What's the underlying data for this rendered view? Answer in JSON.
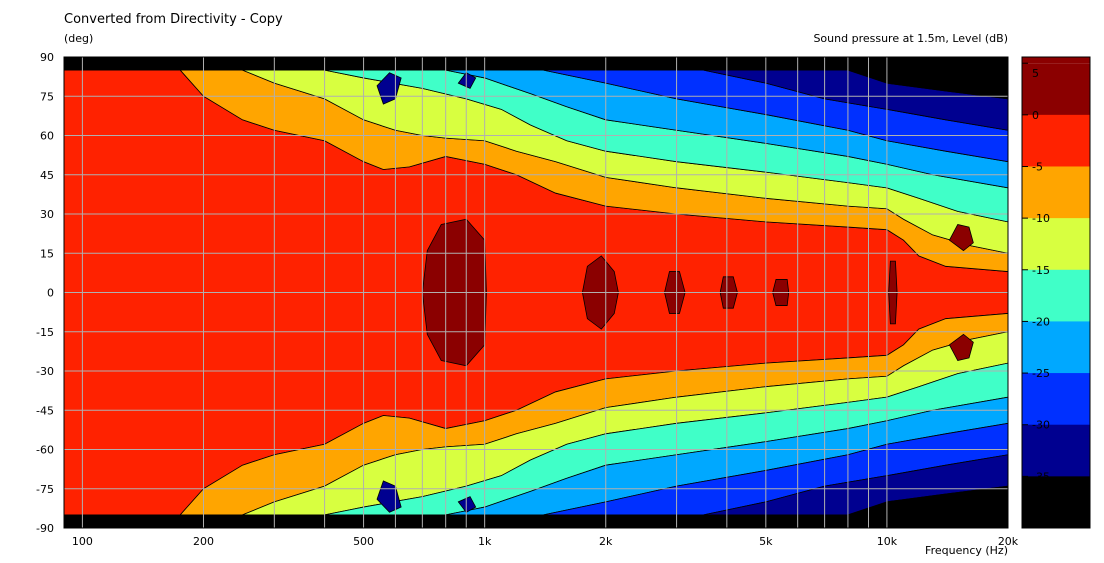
{
  "title": "Converted from Directivity - Copy",
  "y_unit_label": "(deg)",
  "right_title": "Sound pressure at 1.5m, Level  (dB)",
  "x_unit_label": "Frequency  (Hz)",
  "chart_data": {
    "type": "heatmap",
    "title": "Converted from Directivity - Copy",
    "xlabel": "Frequency  (Hz)",
    "ylabel": "(deg)",
    "colorbar_label": "Sound pressure at 1.5m, Level  (dB)",
    "x_scale": "log",
    "xlim": [
      90,
      20000
    ],
    "ylim": [
      -90,
      90
    ],
    "x_ticks": [
      {
        "value": 100,
        "label": "100"
      },
      {
        "value": 200,
        "label": "200"
      },
      {
        "value": 500,
        "label": "500"
      },
      {
        "value": 1000,
        "label": "1k"
      },
      {
        "value": 2000,
        "label": "2k"
      },
      {
        "value": 5000,
        "label": "5k"
      },
      {
        "value": 10000,
        "label": "10k"
      },
      {
        "value": 20000,
        "label": "20k"
      }
    ],
    "y_ticks": [
      90,
      75,
      60,
      45,
      30,
      15,
      0,
      -15,
      -30,
      -45,
      -60,
      -75,
      -90
    ],
    "levels": [
      {
        "min": 0,
        "max": 5,
        "color": "#8B0000"
      },
      {
        "min": -5,
        "max": 0,
        "color": "#FF2200"
      },
      {
        "min": -10,
        "max": -5,
        "color": "#FFA500"
      },
      {
        "min": -15,
        "max": -10,
        "color": "#D8FF40"
      },
      {
        "min": -20,
        "max": -15,
        "color": "#40FFC8"
      },
      {
        "min": -25,
        "max": -20,
        "color": "#00A8FF"
      },
      {
        "min": -30,
        "max": -25,
        "color": "#0030FF"
      },
      {
        "min": -35,
        "max": -30,
        "color": "#000090"
      },
      {
        "min": -40,
        "max": -35,
        "color": "#000000"
      }
    ],
    "colorbar_ticks": [
      "5",
      "0",
      "-5",
      "-10",
      "-15",
      "-20",
      "-25",
      "-30",
      "-35"
    ],
    "contours": [
      {
        "level": "0..5",
        "points": [
          [
            90,
            15
          ],
          [
            100,
            19
          ],
          [
            120,
            28
          ],
          [
            140,
            40
          ],
          [
            160,
            60
          ],
          [
            170,
            85
          ],
          [
            100,
            85
          ],
          [
            90,
            85
          ]
        ]
      },
      {
        "level": "-5..0",
        "points": [
          [
            90,
            85
          ],
          [
            175,
            85
          ],
          [
            200,
            75
          ],
          [
            250,
            66
          ],
          [
            300,
            62
          ],
          [
            400,
            58
          ],
          [
            500,
            50
          ],
          [
            560,
            47
          ],
          [
            650,
            48
          ],
          [
            800,
            52
          ],
          [
            1000,
            49
          ],
          [
            1200,
            45
          ],
          [
            1500,
            38
          ],
          [
            2000,
            33
          ],
          [
            3000,
            30
          ],
          [
            5000,
            27
          ],
          [
            8000,
            25
          ],
          [
            10000,
            24
          ],
          [
            11000,
            20
          ],
          [
            12000,
            14
          ],
          [
            14000,
            10
          ],
          [
            20000,
            8
          ],
          [
            20000,
            0
          ],
          [
            90,
            0
          ]
        ]
      },
      {
        "level": "-10..-5",
        "points": [
          [
            170,
            85
          ],
          [
            250,
            85
          ],
          [
            300,
            80
          ],
          [
            400,
            74
          ],
          [
            500,
            66
          ],
          [
            600,
            62
          ],
          [
            700,
            60
          ],
          [
            800,
            59
          ],
          [
            1000,
            58
          ],
          [
            1200,
            54
          ],
          [
            1500,
            50
          ],
          [
            2000,
            44
          ],
          [
            3000,
            40
          ],
          [
            5000,
            36
          ],
          [
            8000,
            33
          ],
          [
            10000,
            32
          ],
          [
            11000,
            28
          ],
          [
            13000,
            22
          ],
          [
            16000,
            18
          ],
          [
            20000,
            15
          ],
          [
            20000,
            8
          ],
          [
            14000,
            10
          ],
          [
            12000,
            14
          ],
          [
            11000,
            20
          ],
          [
            10000,
            24
          ],
          [
            8000,
            25
          ],
          [
            5000,
            27
          ],
          [
            3000,
            30
          ],
          [
            2000,
            33
          ],
          [
            1500,
            38
          ],
          [
            1200,
            45
          ],
          [
            1000,
            49
          ],
          [
            800,
            52
          ],
          [
            650,
            48
          ],
          [
            560,
            47
          ],
          [
            500,
            50
          ],
          [
            400,
            58
          ],
          [
            300,
            62
          ],
          [
            250,
            66
          ],
          [
            200,
            75
          ],
          [
            175,
            85
          ]
        ]
      },
      {
        "level": "-15..-10",
        "points": [
          [
            250,
            85
          ],
          [
            400,
            85
          ],
          [
            500,
            82
          ],
          [
            700,
            78
          ],
          [
            900,
            74
          ],
          [
            1100,
            70
          ],
          [
            1300,
            64
          ],
          [
            1600,
            58
          ],
          [
            2000,
            54
          ],
          [
            3000,
            50
          ],
          [
            5000,
            46
          ],
          [
            8000,
            42
          ],
          [
            10000,
            40
          ],
          [
            12000,
            36
          ],
          [
            15000,
            31
          ],
          [
            20000,
            27
          ],
          [
            20000,
            15
          ],
          [
            16000,
            18
          ],
          [
            13000,
            22
          ],
          [
            11000,
            28
          ],
          [
            10000,
            32
          ],
          [
            8000,
            33
          ],
          [
            5000,
            36
          ],
          [
            3000,
            40
          ],
          [
            2000,
            44
          ],
          [
            1500,
            50
          ],
          [
            1200,
            54
          ],
          [
            1000,
            58
          ],
          [
            800,
            59
          ],
          [
            700,
            60
          ],
          [
            600,
            62
          ],
          [
            500,
            66
          ],
          [
            400,
            74
          ],
          [
            300,
            80
          ]
        ]
      },
      {
        "level": "-20..-15",
        "points": [
          [
            400,
            85
          ],
          [
            800,
            85
          ],
          [
            1000,
            82
          ],
          [
            1300,
            76
          ],
          [
            1600,
            71
          ],
          [
            2000,
            66
          ],
          [
            3000,
            62
          ],
          [
            5000,
            57
          ],
          [
            8000,
            52
          ],
          [
            10000,
            49
          ],
          [
            13000,
            45
          ],
          [
            20000,
            40
          ],
          [
            20000,
            27
          ],
          [
            15000,
            31
          ],
          [
            12000,
            36
          ],
          [
            10000,
            40
          ],
          [
            8000,
            42
          ],
          [
            5000,
            46
          ],
          [
            3000,
            50
          ],
          [
            2000,
            54
          ],
          [
            1600,
            58
          ],
          [
            1300,
            64
          ],
          [
            1100,
            70
          ],
          [
            900,
            74
          ],
          [
            700,
            78
          ],
          [
            500,
            82
          ]
        ]
      },
      {
        "level": "-25..-20",
        "points": [
          [
            800,
            85
          ],
          [
            1400,
            85
          ],
          [
            2000,
            80
          ],
          [
            3000,
            74
          ],
          [
            5000,
            68
          ],
          [
            8000,
            62
          ],
          [
            10000,
            58
          ],
          [
            14000,
            54
          ],
          [
            20000,
            50
          ],
          [
            20000,
            40
          ],
          [
            13000,
            45
          ],
          [
            10000,
            49
          ],
          [
            8000,
            52
          ],
          [
            5000,
            57
          ],
          [
            3000,
            62
          ],
          [
            2000,
            66
          ],
          [
            1600,
            71
          ],
          [
            1300,
            76
          ],
          [
            1000,
            82
          ]
        ]
      },
      {
        "level": "-30..-25",
        "points": [
          [
            1400,
            85
          ],
          [
            3500,
            85
          ],
          [
            5000,
            80
          ],
          [
            7000,
            74
          ],
          [
            10000,
            70
          ],
          [
            14000,
            66
          ],
          [
            20000,
            62
          ],
          [
            20000,
            50
          ],
          [
            14000,
            54
          ],
          [
            10000,
            58
          ],
          [
            8000,
            62
          ],
          [
            5000,
            68
          ],
          [
            3000,
            74
          ],
          [
            2000,
            80
          ]
        ]
      },
      {
        "level": "-35..-30",
        "points": [
          [
            3500,
            85
          ],
          [
            8000,
            85
          ],
          [
            10000,
            80
          ],
          [
            14000,
            77
          ],
          [
            20000,
            74
          ],
          [
            20000,
            62
          ],
          [
            14000,
            66
          ],
          [
            10000,
            70
          ],
          [
            7000,
            74
          ],
          [
            5000,
            80
          ]
        ]
      },
      {
        "level": "-40..-35",
        "points": [
          [
            8000,
            85
          ],
          [
            20000,
            85
          ],
          [
            20000,
            74
          ],
          [
            14000,
            77
          ],
          [
            10000,
            80
          ]
        ]
      }
    ],
    "islands": [
      {
        "level": "0..5",
        "points": [
          [
            700,
            0
          ],
          [
            720,
            16
          ],
          [
            780,
            26
          ],
          [
            900,
            28
          ],
          [
            1000,
            20
          ],
          [
            1010,
            0
          ]
        ]
      },
      {
        "level": "0..5",
        "points": [
          [
            1750,
            0
          ],
          [
            1800,
            10
          ],
          [
            1950,
            14
          ],
          [
            2100,
            8
          ],
          [
            2150,
            0
          ]
        ]
      },
      {
        "level": "0..5",
        "points": [
          [
            2800,
            0
          ],
          [
            2880,
            8
          ],
          [
            3050,
            8
          ],
          [
            3150,
            0
          ]
        ]
      },
      {
        "level": "0..5",
        "points": [
          [
            3850,
            0
          ],
          [
            3920,
            6
          ],
          [
            4150,
            6
          ],
          [
            4250,
            0
          ]
        ]
      },
      {
        "level": "0..5",
        "points": [
          [
            5200,
            0
          ],
          [
            5300,
            5
          ],
          [
            5650,
            5
          ],
          [
            5700,
            0
          ]
        ]
      },
      {
        "level": "0..5",
        "points": [
          [
            10100,
            0
          ],
          [
            10200,
            12
          ],
          [
            10500,
            12
          ],
          [
            10600,
            0
          ]
        ]
      },
      {
        "level": "0..5",
        "points": [
          [
            14300,
            20
          ],
          [
            15000,
            26
          ],
          [
            16000,
            25
          ],
          [
            16400,
            19
          ],
          [
            15500,
            16
          ]
        ]
      },
      {
        "level": "-35..-30",
        "points": [
          [
            540,
            79
          ],
          [
            580,
            84
          ],
          [
            620,
            82
          ],
          [
            600,
            74
          ],
          [
            560,
            72
          ]
        ]
      },
      {
        "level": "-35..-30",
        "points": [
          [
            860,
            80
          ],
          [
            900,
            84
          ],
          [
            950,
            82
          ],
          [
            920,
            78
          ]
        ]
      }
    ]
  }
}
